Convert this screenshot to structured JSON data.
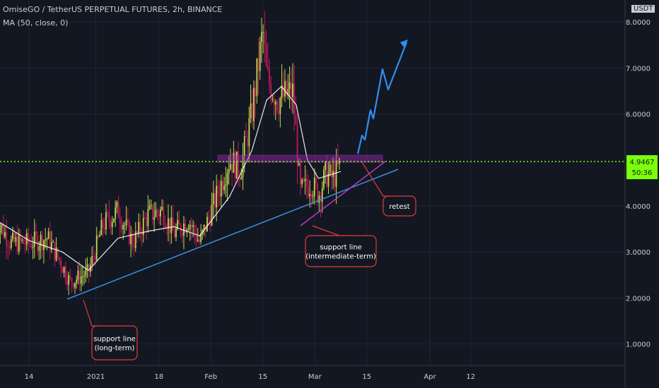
{
  "header": {
    "title": "OmiseGO / TetherUS PERPETUAL FUTURES, 2h, BINANCE",
    "indicator": "MA (50, close, 0)",
    "currency": "USDT"
  },
  "chart_data": {
    "type": "candlestick",
    "y_ticks": [
      {
        "value": 8.0,
        "label": "8.0000"
      },
      {
        "value": 7.0,
        "label": "7.0000"
      },
      {
        "value": 6.0,
        "label": "6.0000"
      },
      {
        "value": 4.0,
        "label": "4.0000"
      },
      {
        "value": 3.0,
        "label": "3.0000"
      },
      {
        "value": 2.0,
        "label": "2.0000"
      },
      {
        "value": 1.0,
        "label": "1.0000"
      }
    ],
    "ylim": [
      0.5,
      8.1
    ],
    "x_ticks": [
      {
        "date": "2020-12-14",
        "label": "14"
      },
      {
        "date": "2021-01-01",
        "label": "2021"
      },
      {
        "date": "2021-01-18",
        "label": "18"
      },
      {
        "date": "2021-02-01",
        "label": "Feb"
      },
      {
        "date": "2021-02-15",
        "label": "15"
      },
      {
        "date": "2021-03-01",
        "label": "Mar"
      },
      {
        "date": "2021-03-15",
        "label": "15"
      },
      {
        "date": "2021-04-01",
        "label": "Apr"
      },
      {
        "date": "2021-04-12",
        "label": "12"
      }
    ],
    "price_path": [
      {
        "date": "2020-12-05",
        "price": 3.75
      },
      {
        "date": "2020-12-09",
        "price": 3.2
      },
      {
        "date": "2020-12-14",
        "price": 3.2
      },
      {
        "date": "2020-12-19",
        "price": 3.3
      },
      {
        "date": "2020-12-23",
        "price": 2.7
      },
      {
        "date": "2020-12-25",
        "price": 2.35
      },
      {
        "date": "2020-12-30",
        "price": 2.55
      },
      {
        "date": "2021-01-03",
        "price": 3.6
      },
      {
        "date": "2021-01-07",
        "price": 3.9
      },
      {
        "date": "2021-01-11",
        "price": 3.2
      },
      {
        "date": "2021-01-15",
        "price": 3.8
      },
      {
        "date": "2021-01-19",
        "price": 3.9
      },
      {
        "date": "2021-01-22",
        "price": 3.4
      },
      {
        "date": "2021-01-26",
        "price": 3.7
      },
      {
        "date": "2021-01-29",
        "price": 3.2
      },
      {
        "date": "2021-02-02",
        "price": 4.1
      },
      {
        "date": "2021-02-06",
        "price": 5.0
      },
      {
        "date": "2021-02-09",
        "price": 4.8
      },
      {
        "date": "2021-02-12",
        "price": 6.0
      },
      {
        "date": "2021-02-14",
        "price": 7.2
      },
      {
        "date": "2021-02-15",
        "price": 7.8
      },
      {
        "date": "2021-02-16",
        "price": 6.8
      },
      {
        "date": "2021-02-19",
        "price": 6.3
      },
      {
        "date": "2021-02-23",
        "price": 6.5
      },
      {
        "date": "2021-02-24",
        "price": 5.5
      },
      {
        "date": "2021-02-25",
        "price": 4.3
      },
      {
        "date": "2021-02-28",
        "price": 4.5
      },
      {
        "date": "2021-03-02",
        "price": 4.25
      },
      {
        "date": "2021-03-04",
        "price": 4.7
      },
      {
        "date": "2021-03-06",
        "price": 4.6
      },
      {
        "date": "2021-03-08",
        "price": 4.95
      }
    ],
    "ma_path": [
      {
        "date": "2020-12-05",
        "price": 3.7
      },
      {
        "date": "2020-12-14",
        "price": 3.25
      },
      {
        "date": "2020-12-23",
        "price": 3.0
      },
      {
        "date": "2020-12-30",
        "price": 2.6
      },
      {
        "date": "2021-01-07",
        "price": 3.3
      },
      {
        "date": "2021-01-15",
        "price": 3.45
      },
      {
        "date": "2021-01-22",
        "price": 3.55
      },
      {
        "date": "2021-01-29",
        "price": 3.35
      },
      {
        "date": "2021-02-06",
        "price": 4.2
      },
      {
        "date": "2021-02-12",
        "price": 5.2
      },
      {
        "date": "2021-02-16",
        "price": 6.3
      },
      {
        "date": "2021-02-20",
        "price": 6.6
      },
      {
        "date": "2021-02-24",
        "price": 6.2
      },
      {
        "date": "2021-02-27",
        "price": 5.0
      },
      {
        "date": "2021-03-02",
        "price": 4.6
      },
      {
        "date": "2021-03-08",
        "price": 4.75
      }
    ],
    "current_price": {
      "value": 4.9467,
      "label": "4.9467",
      "countdown": "50:36",
      "color": "#7cff0a"
    },
    "colors": {
      "up": "#bcd94c",
      "down": "#c2185b",
      "ma": "#ffffff",
      "trendline": "#3b8ede",
      "support_mid": "#b23bc4",
      "zone": "#9c27b0",
      "callout": "#e53935"
    },
    "annotations": [
      {
        "label": "support line (long-term)",
        "lines": [
          "support line",
          "(long-term)"
        ]
      },
      {
        "label": "support line (intermediate-term)",
        "lines": [
          "support line",
          "(intermediate-term)"
        ]
      },
      {
        "label": "retest",
        "lines": [
          "retest"
        ]
      }
    ]
  }
}
